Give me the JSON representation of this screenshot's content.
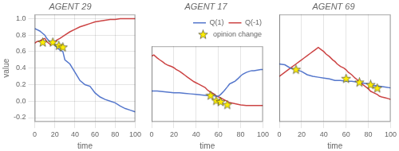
{
  "chart_data": [
    {
      "type": "line",
      "title": "AGENT 29",
      "xlabel": "time",
      "ylabel": "value",
      "xlim": [
        0,
        100
      ],
      "ylim": [
        -0.25,
        1.05
      ],
      "xticks": [
        0,
        20,
        40,
        60,
        80,
        100
      ],
      "yticks": [
        -0.2,
        {
          "value": 0,
          "label": "0.0"
        },
        0.2,
        0.4,
        0.6,
        0.8,
        {
          "value": 1.0,
          "label": "1.0"
        }
      ],
      "grid": true,
      "series": [
        {
          "color": "#5577cc",
          "x": [
            0,
            5,
            7,
            10,
            12,
            15,
            18,
            20,
            22,
            25,
            28,
            30,
            35,
            40,
            45,
            50,
            55,
            60,
            65,
            70,
            75,
            80,
            85,
            90,
            95,
            100
          ],
          "values": [
            0.88,
            0.85,
            0.83,
            0.8,
            0.76,
            0.72,
            0.7,
            0.68,
            0.65,
            0.62,
            0.6,
            0.5,
            0.45,
            0.35,
            0.25,
            0.2,
            0.18,
            0.1,
            0.05,
            0.02,
            0.0,
            -0.02,
            -0.06,
            -0.09,
            -0.11,
            -0.13
          ]
        },
        {
          "color": "#cc4444",
          "x": [
            0,
            2,
            5,
            8,
            10,
            12,
            14,
            16,
            18,
            20,
            22,
            25,
            30,
            35,
            40,
            45,
            50,
            55,
            60,
            65,
            70,
            75,
            80,
            85,
            90,
            95,
            100
          ],
          "values": [
            0.7,
            0.72,
            0.73,
            0.75,
            0.76,
            0.72,
            0.7,
            0.68,
            0.7,
            0.72,
            0.74,
            0.76,
            0.8,
            0.84,
            0.87,
            0.9,
            0.92,
            0.94,
            0.96,
            0.97,
            0.98,
            0.99,
            0.99,
            1.0,
            1.0,
            1.0,
            1.0
          ]
        },
        {
          "type": "scatter",
          "marker": "star",
          "color": "#ffee00",
          "x": [
            8,
            18,
            24,
            28
          ],
          "values": [
            0.71,
            0.71,
            0.67,
            0.65
          ]
        }
      ]
    },
    {
      "type": "line",
      "title": "AGENT 17",
      "xlabel": "time",
      "xlim": [
        0,
        100
      ],
      "ylim": [
        -0.25,
        1.05
      ],
      "xticks": [
        0,
        20,
        40,
        60,
        80,
        100
      ],
      "yticks": [],
      "tick_labels": "x",
      "grid": true,
      "legend": "upper right",
      "series": [
        {
          "name": "Q(1)",
          "color": "#5577cc",
          "x": [
            0,
            5,
            10,
            15,
            20,
            25,
            30,
            35,
            40,
            45,
            50,
            55,
            58,
            60,
            62,
            65,
            68,
            70,
            72,
            75,
            78,
            80,
            82,
            85,
            88,
            90,
            92,
            95,
            98,
            100
          ],
          "values": [
            0.28,
            0.28,
            0.27,
            0.26,
            0.25,
            0.25,
            0.24,
            0.23,
            0.22,
            0.21,
            0.2,
            0.2,
            0.19,
            0.19,
            0.22,
            0.28,
            0.35,
            0.4,
            0.42,
            0.45,
            0.5,
            0.54,
            0.57,
            0.6,
            0.62,
            0.63,
            0.63,
            0.64,
            0.65,
            0.65
          ]
        },
        {
          "name": "Q(-1)",
          "color": "#cc4444",
          "x": [
            0,
            2,
            5,
            7,
            10,
            12,
            15,
            18,
            20,
            22,
            25,
            28,
            30,
            32,
            35,
            38,
            40,
            42,
            45,
            48,
            50,
            52,
            55,
            58,
            60,
            62,
            65,
            68,
            70,
            75,
            80,
            85,
            90,
            95,
            100
          ],
          "values": [
            0.88,
            0.9,
            0.85,
            0.82,
            0.78,
            0.75,
            0.72,
            0.7,
            0.68,
            0.65,
            0.62,
            0.58,
            0.55,
            0.52,
            0.48,
            0.44,
            0.42,
            0.4,
            0.37,
            0.34,
            0.3,
            0.27,
            0.24,
            0.2,
            0.18,
            0.16,
            0.13,
            0.1,
            0.08,
            0.06,
            0.04,
            0.03,
            0.03,
            0.03,
            0.03
          ]
        },
        {
          "name": "opinion change",
          "type": "scatter",
          "marker": "star",
          "color": "#ffee00",
          "x": [
            53,
            58,
            62,
            68
          ],
          "values": [
            0.2,
            0.11,
            0.09,
            0.04
          ]
        }
      ]
    },
    {
      "type": "line",
      "title": "AGENT 69",
      "xlabel": "time",
      "xlim": [
        0,
        100
      ],
      "ylim": [
        -0.25,
        1.05
      ],
      "xticks": [
        0,
        20,
        40,
        60,
        80,
        100
      ],
      "yticks": [],
      "tick_labels": "x",
      "grid": true,
      "series": [
        {
          "color": "#5577cc",
          "x": [
            0,
            5,
            10,
            15,
            20,
            25,
            30,
            35,
            40,
            45,
            50,
            55,
            60,
            65,
            70,
            75,
            80,
            85,
            90,
            95,
            100
          ],
          "values": [
            0.45,
            0.44,
            0.4,
            0.38,
            0.36,
            0.32,
            0.3,
            0.29,
            0.28,
            0.27,
            0.25,
            0.25,
            0.24,
            0.24,
            0.23,
            0.22,
            0.21,
            0.19,
            0.18,
            0.17,
            0.16
          ]
        },
        {
          "color": "#cc4444",
          "x": [
            0,
            5,
            10,
            15,
            18,
            20,
            22,
            25,
            28,
            30,
            32,
            35,
            38,
            40,
            42,
            45,
            48,
            50,
            52,
            55,
            58,
            60,
            62,
            65,
            68,
            70,
            72,
            75,
            78,
            80,
            82,
            85,
            88,
            90,
            92,
            95,
            98,
            100
          ],
          "values": [
            0.3,
            0.35,
            0.4,
            0.45,
            0.48,
            0.5,
            0.52,
            0.55,
            0.58,
            0.6,
            0.62,
            0.65,
            0.62,
            0.6,
            0.57,
            0.54,
            0.5,
            0.48,
            0.45,
            0.42,
            0.4,
            0.38,
            0.35,
            0.32,
            0.28,
            0.26,
            0.23,
            0.2,
            0.17,
            0.15,
            0.12,
            0.1,
            0.08,
            0.06,
            0.05,
            0.04,
            0.03,
            0.02
          ]
        },
        {
          "type": "scatter",
          "marker": "star",
          "color": "#ffee00",
          "x": [
            15,
            60,
            72,
            82,
            88
          ],
          "values": [
            0.38,
            0.27,
            0.225,
            0.195,
            0.155
          ]
        }
      ]
    }
  ]
}
